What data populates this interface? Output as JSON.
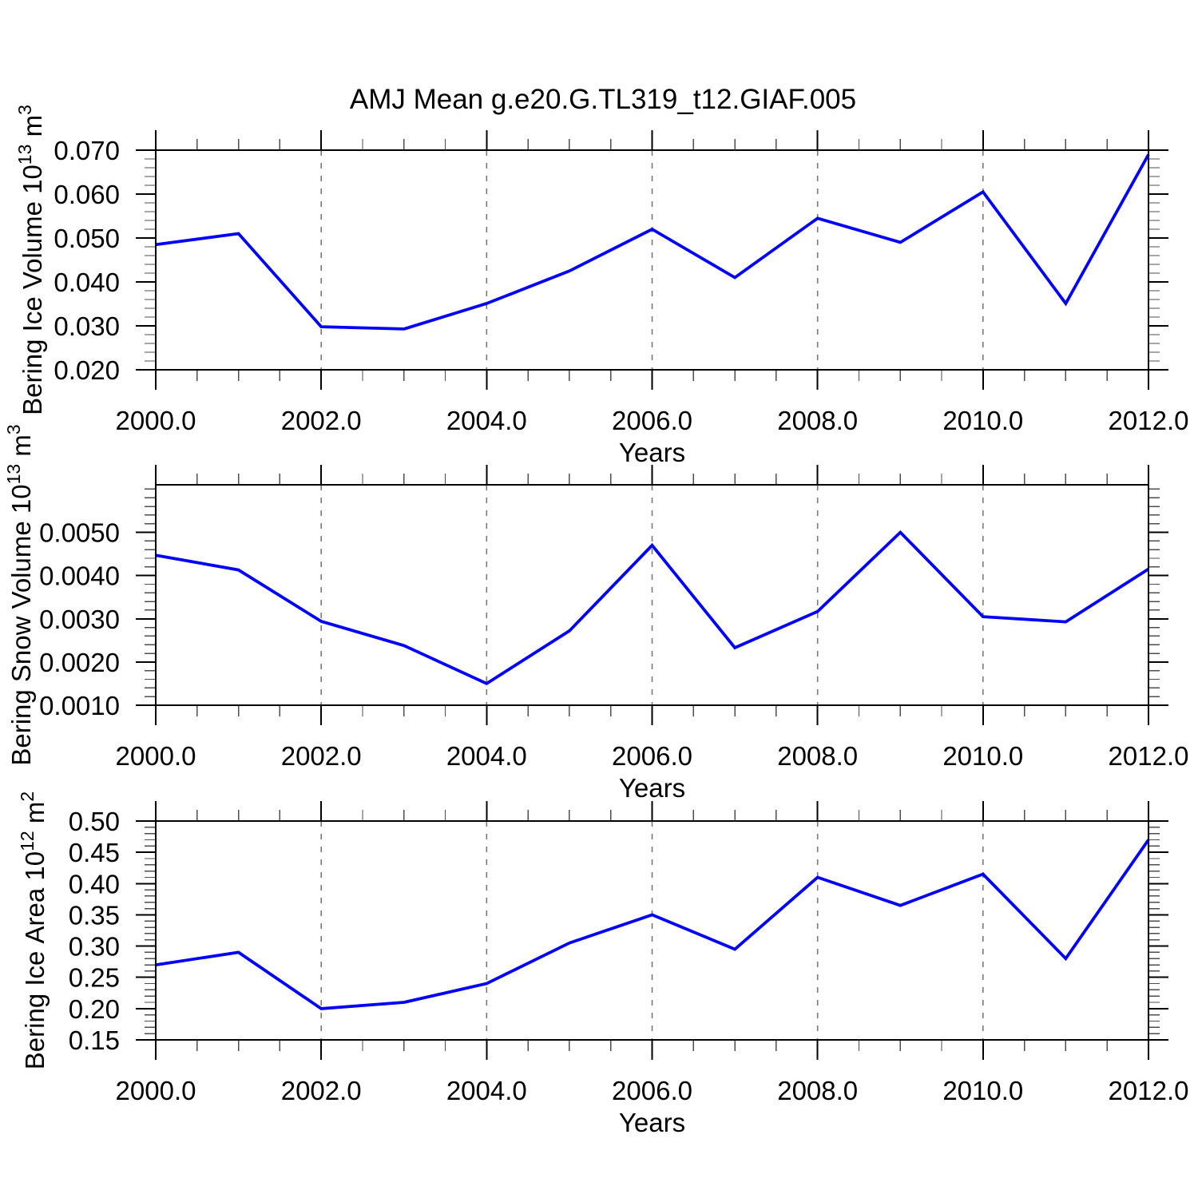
{
  "title": "AMJ Mean g.e20.G.TL319_t12.GIAF.005",
  "colors": {
    "line": "#0000ff",
    "frame": "#000000",
    "grid": "#7a7a7a",
    "minor_tick": "#4d4d4d",
    "text": "#000000",
    "background": "#ffffff"
  },
  "chart_data": [
    {
      "type": "line",
      "panel": "top",
      "ylabel": "Bering Ice Volume 10^13 m^3",
      "ylabel_segments": [
        {
          "text": "Bering Ice Volume 10"
        },
        {
          "text": "13",
          "sup": true
        },
        {
          "text": " m"
        },
        {
          "text": "3",
          "sup": true
        }
      ],
      "xlabel": "Years",
      "x": [
        2000,
        2001,
        2002,
        2003,
        2004,
        2005,
        2006,
        2007,
        2008,
        2009,
        2010,
        2011,
        2012
      ],
      "values": [
        0.0485,
        0.051,
        0.0298,
        0.0293,
        0.0351,
        0.0425,
        0.052,
        0.041,
        0.0545,
        0.049,
        0.0605,
        0.0351,
        0.069
      ],
      "xlim": [
        2000,
        2012
      ],
      "ylim": [
        0.02,
        0.07
      ],
      "xticks": [
        2000,
        2002,
        2004,
        2006,
        2008,
        2010,
        2012
      ],
      "xtick_labels": [
        "2000.0",
        "2002.0",
        "2004.0",
        "2006.0",
        "2008.0",
        "2010.0",
        "2012.0"
      ],
      "xminor_step": 0.5,
      "yticks": [
        0.02,
        0.03,
        0.04,
        0.05,
        0.06,
        0.07
      ],
      "ytick_labels": [
        "0.020",
        "0.030",
        "0.040",
        "0.050",
        "0.060",
        "0.070"
      ],
      "yminor_step": 0.002,
      "grid_x": [
        2002,
        2004,
        2006,
        2008,
        2010
      ],
      "grid_style": "dashed"
    },
    {
      "type": "line",
      "panel": "middle",
      "ylabel": "Bering Snow Volume 10^13 m^3",
      "ylabel_segments": [
        {
          "text": "Bering Snow Volume 10"
        },
        {
          "text": "13",
          "sup": true
        },
        {
          "text": " m"
        },
        {
          "text": "3",
          "sup": true
        }
      ],
      "xlabel": "Years",
      "x": [
        2000,
        2001,
        2002,
        2003,
        2004,
        2005,
        2006,
        2007,
        2008,
        2009,
        2010,
        2011,
        2012
      ],
      "values": [
        0.00447,
        0.00413,
        0.00294,
        0.00238,
        0.0015,
        0.00272,
        0.0047,
        0.00233,
        0.00317,
        0.005,
        0.00305,
        0.00293,
        0.00415
      ],
      "xlim": [
        2000,
        2012
      ],
      "ylim": [
        0.001,
        0.0061
      ],
      "xticks": [
        2000,
        2002,
        2004,
        2006,
        2008,
        2010,
        2012
      ],
      "xtick_labels": [
        "2000.0",
        "2002.0",
        "2004.0",
        "2006.0",
        "2008.0",
        "2010.0",
        "2012.0"
      ],
      "xminor_step": 0.5,
      "yticks": [
        0.001,
        0.002,
        0.003,
        0.004,
        0.005
      ],
      "ytick_labels": [
        "0.0010",
        "0.0020",
        "0.0030",
        "0.0040",
        "0.0050"
      ],
      "yminor_step": 0.0002,
      "grid_x": [
        2002,
        2004,
        2006,
        2008,
        2010
      ],
      "grid_style": "dashed"
    },
    {
      "type": "line",
      "panel": "bottom",
      "ylabel": "Bering Ice Area 10^12 m^2",
      "ylabel_segments": [
        {
          "text": "Bering Ice Area 10"
        },
        {
          "text": "12",
          "sup": true
        },
        {
          "text": " m"
        },
        {
          "text": "2",
          "sup": true
        }
      ],
      "xlabel": "Years",
      "x": [
        2000,
        2001,
        2002,
        2003,
        2004,
        2005,
        2006,
        2007,
        2008,
        2009,
        2010,
        2011,
        2012
      ],
      "values": [
        0.27,
        0.29,
        0.2,
        0.21,
        0.24,
        0.305,
        0.35,
        0.295,
        0.41,
        0.365,
        0.415,
        0.28,
        0.47
      ],
      "xlim": [
        2000,
        2012
      ],
      "ylim": [
        0.15,
        0.5
      ],
      "xticks": [
        2000,
        2002,
        2004,
        2006,
        2008,
        2010,
        2012
      ],
      "xtick_labels": [
        "2000.0",
        "2002.0",
        "2004.0",
        "2006.0",
        "2008.0",
        "2010.0",
        "2012.0"
      ],
      "xminor_step": 0.5,
      "yticks": [
        0.15,
        0.2,
        0.25,
        0.3,
        0.35,
        0.4,
        0.45,
        0.5
      ],
      "ytick_labels": [
        "0.15",
        "0.20",
        "0.25",
        "0.30",
        "0.35",
        "0.40",
        "0.45",
        "0.50"
      ],
      "yminor_step": 0.01,
      "grid_x": [
        2002,
        2004,
        2006,
        2008,
        2010
      ],
      "grid_style": "dashed"
    }
  ]
}
